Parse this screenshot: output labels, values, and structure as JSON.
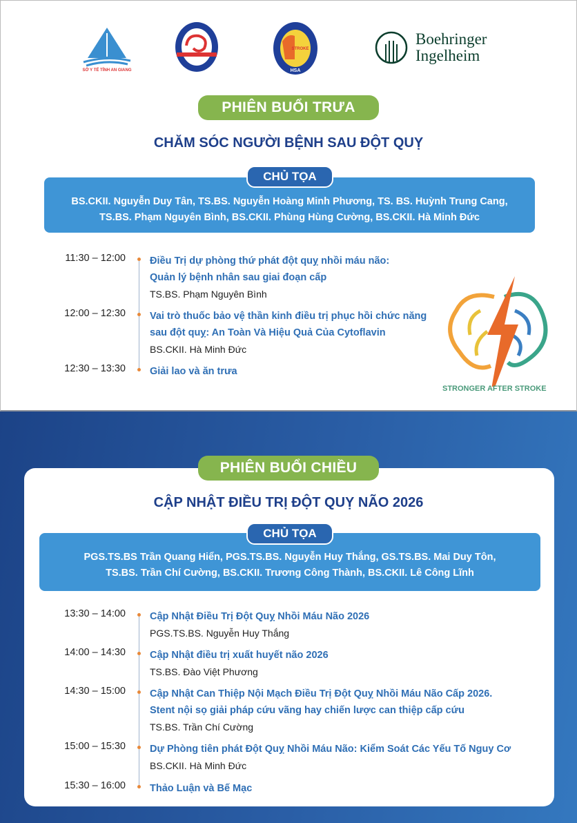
{
  "logos": [
    {
      "name": "so-y-te-an-giang",
      "text": "SỞ Y TẾ TỈNH AN GIANG"
    },
    {
      "name": "hoi-dot-quy-ha-noi",
      "text": "HỘI ĐỘT QUỴ HÀ NỘI"
    },
    {
      "name": "hoi-dot-quy-tp-hcm",
      "text": "HỘI ĐỘT QUỴ TP. HỒ CHÍ MINH · HCMC STROKE ASSOCIATION · HSA"
    },
    {
      "name": "boehringer-ingelheim",
      "line1": "Boehringer",
      "line2": "Ingelheim"
    }
  ],
  "brand_logo": {
    "text": "STRONGER AFTER STROKE"
  },
  "colors": {
    "navy": "#1e3f8a",
    "green": "#86b54e",
    "blue_box": "#3f95d6",
    "item_blue": "#2f6fb5",
    "dot": "#e8893a"
  },
  "sessions": [
    {
      "label": "PHIÊN BUỔI TRƯA",
      "title": "CHĂM SÓC NGƯỜI BỆNH SAU ĐỘT QUỴ",
      "chair_label": "CHỦ TỌA",
      "chairs": [
        "BS.CKII. Nguyễn Duy Tân, TS.BS. Nguyễn Hoàng Minh Phương, TS. BS. Huỳnh Trung Cang,",
        "TS.BS. Phạm Nguyên Bình, BS.CKII. Phùng Hùng Cường, BS.CKII. Hà Minh Đức"
      ],
      "items": [
        {
          "time": "11:30 – 12:00",
          "title": [
            "Điều Trị dự phòng thứ phát đột quỵ nhồi máu não:",
            "Quản lý bệnh nhân sau giai đoạn cấp"
          ],
          "speaker": "TS.BS. Phạm Nguyên Bình"
        },
        {
          "time": "12:00 – 12:30",
          "title": [
            "Vai trò thuốc bảo vệ thần kinh điều trị phục hồi chức năng",
            "sau đột quỵ: An Toàn Và Hiệu Quả Của Cytoflavin"
          ],
          "speaker": "BS.CKII. Hà Minh Đức"
        },
        {
          "time": "12:30 – 13:30",
          "title": [
            "Giải lao và ăn trưa"
          ]
        }
      ]
    },
    {
      "label": "PHIÊN BUỔI CHIỀU",
      "title": "CẬP NHẬT ĐIỀU TRỊ ĐỘT QUỴ NÃO 2026",
      "chair_label": "CHỦ TỌA",
      "chairs": [
        "PGS.TS.BS Trần Quang Hiển, PGS.TS.BS. Nguyễn Huy Thắng, GS.TS.BS. Mai Duy Tôn,",
        "TS.BS. Trần Chí Cường, BS.CKII. Trương Công Thành, BS.CKII. Lê Công Lĩnh"
      ],
      "items": [
        {
          "time": "13:30 – 14:00",
          "title": [
            "Cập Nhật Điều Trị Đột Quỵ Nhồi Máu Não 2026"
          ],
          "speaker": "PGS.TS.BS. Nguyễn Huy Thắng"
        },
        {
          "time": "14:00 – 14:30",
          "title": [
            "Cập Nhật điều trị xuất huyết não 2026"
          ],
          "speaker": "TS.BS. Đào Việt Phương"
        },
        {
          "time": "14:30 – 15:00",
          "title": [
            "Cập Nhật Can Thiệp Nội Mạch Điều Trị Đột Quỵ Nhồi Máu Não Cấp 2026.",
            "Stent nội sọ giải pháp cứu vãng hay chiến lược can thiệp cấp cứu"
          ],
          "speaker": "TS.BS. Trần Chí Cường"
        },
        {
          "time": "15:00 – 15:30",
          "title": [
            "Dự Phòng tiên phát Đột Quỵ Nhồi Máu Não: Kiểm Soát Các Yếu Tố Nguy Cơ"
          ],
          "speaker": "BS.CKII. Hà Minh Đức"
        },
        {
          "time": "15:30 – 16:00",
          "title": [
            "Thảo Luận và Bế Mạc"
          ]
        }
      ]
    }
  ]
}
